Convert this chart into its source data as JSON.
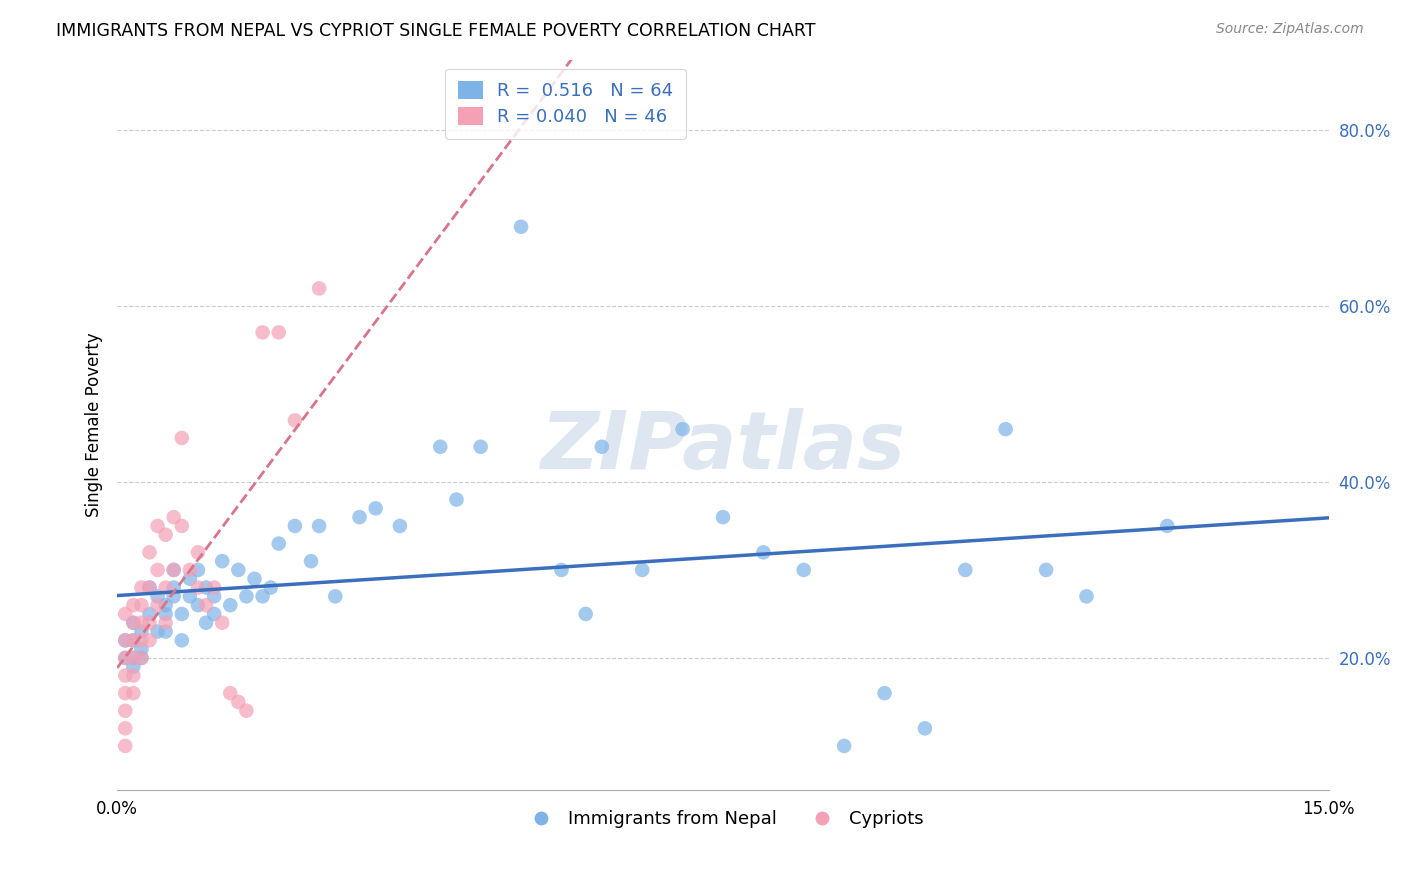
{
  "title": "IMMIGRANTS FROM NEPAL VS CYPRIOT SINGLE FEMALE POVERTY CORRELATION CHART",
  "source": "Source: ZipAtlas.com",
  "ylabel": "Single Female Poverty",
  "y_ticks": [
    0.2,
    0.4,
    0.6,
    0.8
  ],
  "y_tick_labels": [
    "20.0%",
    "40.0%",
    "60.0%",
    "80.0%"
  ],
  "x_lim": [
    0.0,
    0.15
  ],
  "y_lim": [
    0.05,
    0.88
  ],
  "nepal_R": "0.516",
  "nepal_N": "64",
  "cypriot_R": "0.040",
  "cypriot_N": "46",
  "blue_color": "#7EB3E8",
  "pink_color": "#F4A0B5",
  "blue_line_color": "#3B6FBE",
  "pink_line_color": "#D9748A",
  "watermark": "ZIPatlas",
  "nepal_x": [
    0.001,
    0.001,
    0.002,
    0.002,
    0.002,
    0.002,
    0.003,
    0.003,
    0.003,
    0.004,
    0.004,
    0.005,
    0.005,
    0.006,
    0.006,
    0.006,
    0.007,
    0.007,
    0.007,
    0.008,
    0.008,
    0.009,
    0.009,
    0.01,
    0.01,
    0.011,
    0.011,
    0.012,
    0.012,
    0.013,
    0.014,
    0.015,
    0.016,
    0.017,
    0.018,
    0.019,
    0.02,
    0.022,
    0.024,
    0.025,
    0.027,
    0.03,
    0.032,
    0.035,
    0.04,
    0.042,
    0.045,
    0.05,
    0.055,
    0.058,
    0.06,
    0.065,
    0.07,
    0.075,
    0.08,
    0.085,
    0.09,
    0.095,
    0.1,
    0.105,
    0.11,
    0.115,
    0.12,
    0.13
  ],
  "nepal_y": [
    0.22,
    0.2,
    0.24,
    0.22,
    0.2,
    0.19,
    0.23,
    0.21,
    0.2,
    0.28,
    0.25,
    0.27,
    0.23,
    0.26,
    0.25,
    0.23,
    0.28,
    0.3,
    0.27,
    0.25,
    0.22,
    0.29,
    0.27,
    0.3,
    0.26,
    0.28,
    0.24,
    0.27,
    0.25,
    0.31,
    0.26,
    0.3,
    0.27,
    0.29,
    0.27,
    0.28,
    0.33,
    0.35,
    0.31,
    0.35,
    0.27,
    0.36,
    0.37,
    0.35,
    0.44,
    0.38,
    0.44,
    0.69,
    0.3,
    0.25,
    0.44,
    0.3,
    0.46,
    0.36,
    0.32,
    0.3,
    0.1,
    0.16,
    0.12,
    0.3,
    0.46,
    0.3,
    0.27,
    0.35
  ],
  "cypriot_x": [
    0.001,
    0.001,
    0.001,
    0.001,
    0.001,
    0.001,
    0.001,
    0.001,
    0.002,
    0.002,
    0.002,
    0.002,
    0.002,
    0.002,
    0.003,
    0.003,
    0.003,
    0.003,
    0.003,
    0.004,
    0.004,
    0.004,
    0.004,
    0.005,
    0.005,
    0.005,
    0.006,
    0.006,
    0.006,
    0.007,
    0.007,
    0.008,
    0.008,
    0.009,
    0.01,
    0.01,
    0.011,
    0.012,
    0.013,
    0.014,
    0.015,
    0.016,
    0.018,
    0.02,
    0.022,
    0.025
  ],
  "cypriot_y": [
    0.25,
    0.22,
    0.2,
    0.18,
    0.16,
    0.14,
    0.12,
    0.1,
    0.26,
    0.24,
    0.22,
    0.2,
    0.18,
    0.16,
    0.28,
    0.26,
    0.24,
    0.22,
    0.2,
    0.32,
    0.28,
    0.24,
    0.22,
    0.35,
    0.3,
    0.26,
    0.34,
    0.28,
    0.24,
    0.36,
    0.3,
    0.45,
    0.35,
    0.3,
    0.32,
    0.28,
    0.26,
    0.28,
    0.24,
    0.16,
    0.15,
    0.14,
    0.57,
    0.57,
    0.47,
    0.62
  ]
}
